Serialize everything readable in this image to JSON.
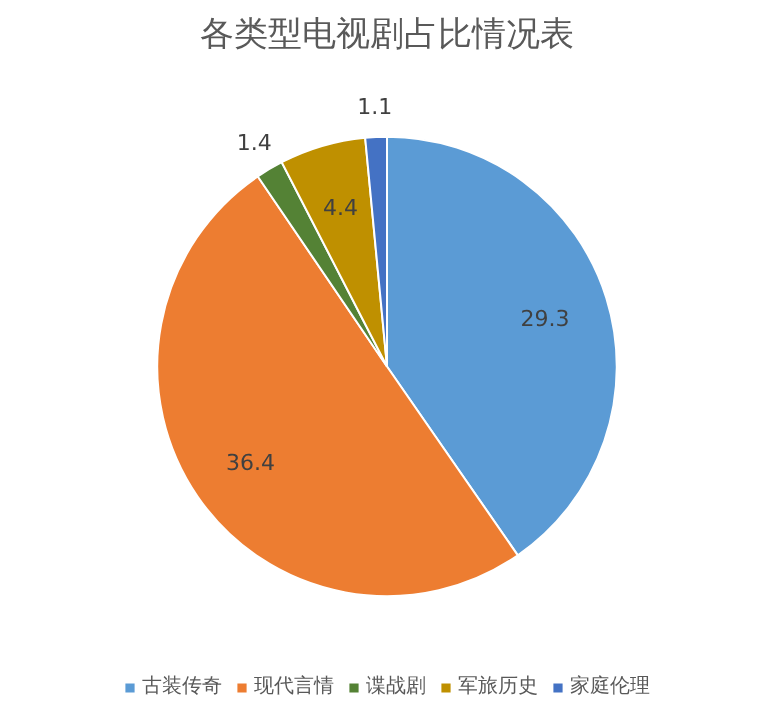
{
  "chart_data": {
    "type": "pie",
    "title": "各类型电视剧占比情况表",
    "categories": [
      "古装传奇",
      "现代言情",
      "谍战剧",
      "军旅历史",
      "家庭伦理"
    ],
    "values": [
      29.3,
      36.4,
      1.4,
      4.4,
      1.1
    ],
    "colors": [
      "#5b9bd5",
      "#ed7d31",
      "#548235",
      "#bf9000",
      "#4472c4"
    ],
    "data_labels": true,
    "legend": "bottom"
  }
}
